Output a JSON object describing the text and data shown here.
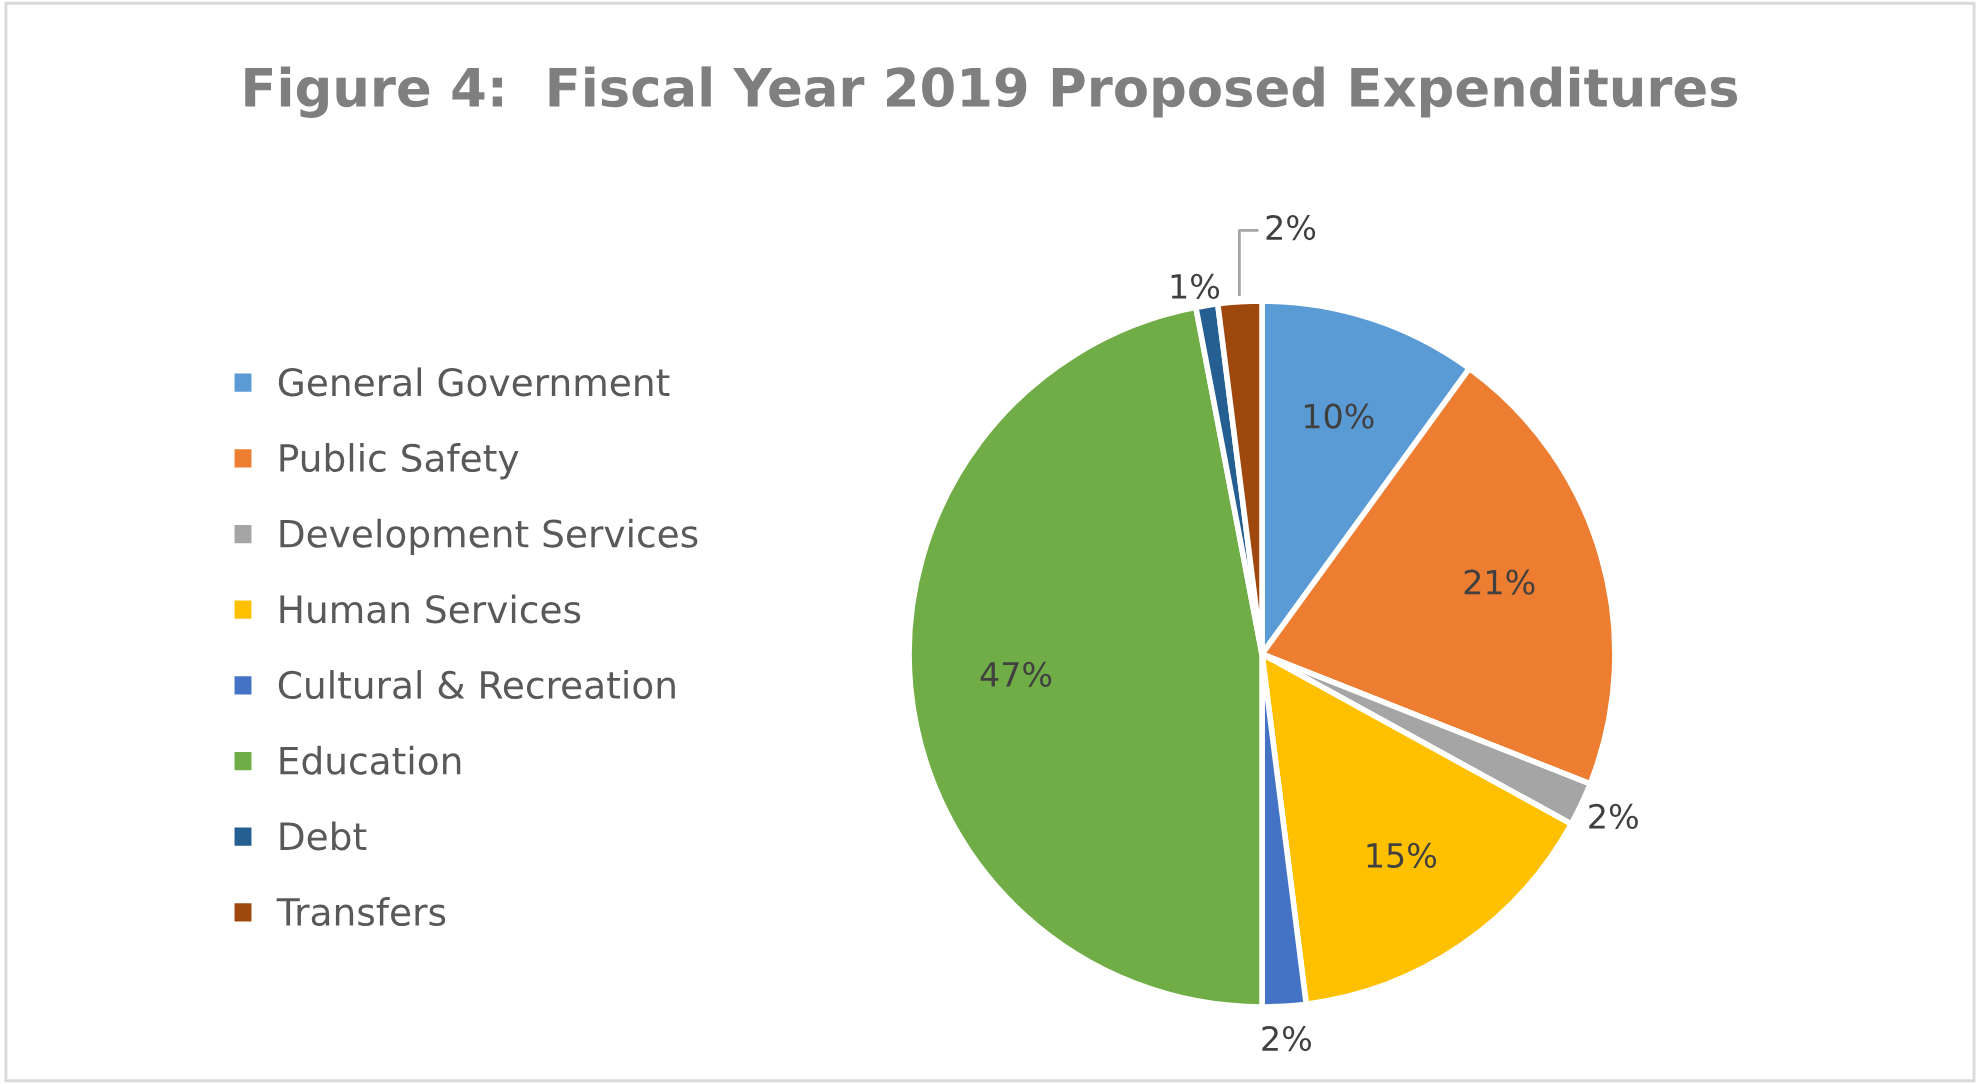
{
  "chart_data": {
    "type": "pie",
    "title": "Figure 4:  Fiscal Year 2019 Proposed Expenditures",
    "categories": [
      "General Government",
      "Public Safety",
      "Development Services",
      "Human Services",
      "Cultural & Recreation",
      "Education",
      "Debt",
      "Transfers"
    ],
    "values": [
      10,
      21,
      2,
      15,
      2,
      47,
      1,
      2
    ],
    "colors": [
      "#5b9bd5",
      "#ed7d31",
      "#a5a5a5",
      "#ffc000",
      "#4472c4",
      "#70ad47",
      "#255e91",
      "#9e480e"
    ],
    "value_labels": [
      "10%",
      "21%",
      "2%",
      "15%",
      "2%",
      "47%",
      "1%",
      "2%"
    ],
    "legend": "left"
  }
}
